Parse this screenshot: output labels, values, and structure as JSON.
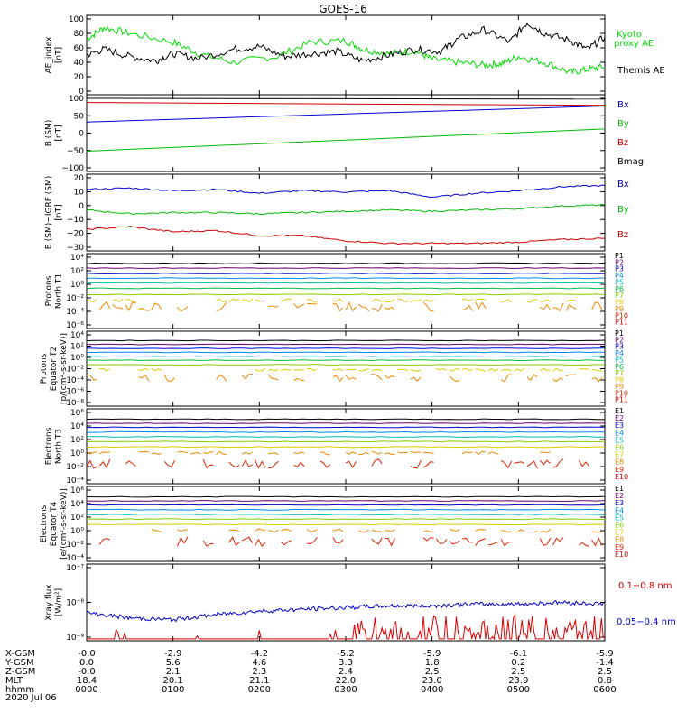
{
  "title": "GOES-16",
  "date_label": "2020 Jul 06",
  "ephemeris": {
    "row_labels": [
      "X-GSM",
      "Y-GSM",
      "Z-GSM",
      "MLT",
      "hhmm"
    ],
    "columns": [
      [
        "-0.0",
        "0.0",
        "-0.0",
        "18.4",
        "0000"
      ],
      [
        "-2.9",
        "5.6",
        "2.1",
        "20.1",
        "0100"
      ],
      [
        "-4.2",
        "4.6",
        "2.3",
        "21.1",
        "0200"
      ],
      [
        "-5.2",
        "3.3",
        "2.4",
        "22.0",
        "0300"
      ],
      [
        "-5.9",
        "1.8",
        "2.5",
        "23.0",
        "0400"
      ],
      [
        "-6.1",
        "0.2",
        "2.5",
        "23.9",
        "0500"
      ],
      [
        "-5.9",
        "-1.4",
        "2.5",
        "0.8",
        "0600"
      ]
    ]
  },
  "chart_data": [
    {
      "type": "line",
      "ylabel": [
        "AE_index",
        "[nT]"
      ],
      "yticks": [
        "100",
        "80",
        "60",
        "40",
        "20",
        "0"
      ],
      "ylim": [
        0,
        100
      ],
      "legend": [
        {
          "label": "Kyoto",
          "color": "#00dd00"
        },
        {
          "label": "proxy AE",
          "color": "#00dd00"
        },
        {
          "label": "Themis AE",
          "color": "#000000"
        }
      ],
      "x_hours": [
        0,
        6
      ],
      "series": [
        {
          "name": "Kyoto proxy AE",
          "color": "#00dd00",
          "x": [
            0,
            0.2,
            0.5,
            1.0,
            1.3,
            1.7,
            2.2,
            2.6,
            3.0,
            3.2,
            3.5,
            3.8,
            4.0,
            4.3,
            4.6,
            4.8,
            5.0,
            5.3,
            5.6,
            5.8,
            6.0
          ],
          "y": [
            72,
            88,
            80,
            68,
            52,
            40,
            48,
            68,
            70,
            58,
            52,
            56,
            44,
            40,
            36,
            38,
            48,
            40,
            26,
            30,
            34
          ]
        },
        {
          "name": "Themis AE",
          "color": "#000000",
          "x": [
            0,
            0.2,
            0.5,
            0.8,
            1.0,
            1.3,
            1.7,
            2.0,
            2.3,
            2.6,
            2.9,
            3.2,
            3.5,
            3.8,
            4.1,
            4.3,
            4.6,
            4.9,
            5.1,
            5.3,
            5.6,
            5.8,
            6.0
          ],
          "y": [
            50,
            58,
            48,
            42,
            52,
            45,
            58,
            62,
            48,
            52,
            55,
            42,
            50,
            58,
            55,
            72,
            85,
            68,
            95,
            80,
            70,
            58,
            75
          ]
        }
      ]
    },
    {
      "type": "line",
      "ylabel": [
        "B (SM)",
        "[nT]"
      ],
      "yticks": [
        "100",
        "50",
        "0",
        "−50",
        "−100"
      ],
      "ylim": [
        -100,
        100
      ],
      "legend": [
        {
          "label": "Bx",
          "color": "#0000cc"
        },
        {
          "label": "By",
          "color": "#00bb00"
        },
        {
          "label": "Bz",
          "color": "#cc0000"
        },
        {
          "label": "Bmag",
          "color": "#000000"
        }
      ],
      "x_hours": [
        0,
        6
      ],
      "series": [
        {
          "name": "Bmag",
          "color": "#000000",
          "x": [
            0,
            6
          ],
          "y": [
            100,
            98
          ]
        },
        {
          "name": "Bz",
          "color": "#cc0000",
          "x": [
            0,
            6
          ],
          "y": [
            88,
            80
          ]
        },
        {
          "name": "Bx",
          "color": "#0000cc",
          "x": [
            0,
            6
          ],
          "y": [
            32,
            78
          ]
        },
        {
          "name": "By",
          "color": "#00bb00",
          "x": [
            0,
            6
          ],
          "y": [
            -52,
            12
          ]
        }
      ]
    },
    {
      "type": "line",
      "ylabel": [
        "B (SM)−IGRF (SM)",
        "[nT]"
      ],
      "yticks": [
        "20",
        "10",
        "0",
        "−10",
        "−20",
        "−30"
      ],
      "ylim": [
        -32,
        22
      ],
      "legend": [
        {
          "label": "Bx",
          "color": "#0000cc"
        },
        {
          "label": "By",
          "color": "#00bb00"
        },
        {
          "label": "Bz",
          "color": "#cc0000"
        }
      ],
      "x_hours": [
        0,
        6
      ],
      "series": [
        {
          "name": "Bx",
          "color": "#0000cc",
          "x": [
            0,
            0.5,
            1.0,
            1.5,
            2.0,
            2.5,
            3.0,
            3.5,
            4.0,
            4.5,
            5.0,
            5.5,
            6.0
          ],
          "y": [
            13,
            14,
            12,
            13,
            10,
            12,
            11,
            12,
            7,
            10,
            12,
            15,
            16
          ]
        },
        {
          "name": "By",
          "color": "#00bb00",
          "x": [
            0,
            0.5,
            1.0,
            1.5,
            2.0,
            2.5,
            3.0,
            3.5,
            4.0,
            4.5,
            5.0,
            5.5,
            6.0
          ],
          "y": [
            -3,
            -6,
            -5,
            -5,
            -6,
            -5,
            -4,
            -3,
            -4,
            -3,
            -2,
            0,
            1
          ]
        },
        {
          "name": "Bz",
          "color": "#cc0000",
          "x": [
            0,
            0.5,
            1.0,
            1.5,
            2.0,
            2.5,
            3.0,
            3.5,
            4.0,
            4.5,
            5.0,
            5.5,
            6.0
          ],
          "y": [
            -18,
            -16,
            -20,
            -19,
            -23,
            -23,
            -27,
            -29,
            -29,
            -29,
            -28,
            -26,
            -25
          ]
        }
      ]
    },
    {
      "type": "line",
      "ylabel": [
        "Protons",
        "North T1"
      ],
      "yticks": [
        "10⁴",
        "10²",
        "10⁰",
        "10⁻²",
        "10⁻⁴",
        "10⁻⁶"
      ],
      "log_scale": true,
      "legend": [
        {
          "label": "P1",
          "color": "#000000"
        },
        {
          "label": "P2",
          "color": "#6a006a"
        },
        {
          "label": "P3",
          "color": "#0000cc"
        },
        {
          "label": "P4",
          "color": "#0088ee"
        },
        {
          "label": "P5",
          "color": "#00bbbb"
        },
        {
          "label": "P6",
          "color": "#00bb44"
        },
        {
          "label": "P7",
          "color": "#88cc00"
        },
        {
          "label": "P8",
          "color": "#ddcc00"
        },
        {
          "label": "P9",
          "color": "#ee8800"
        },
        {
          "label": "P10",
          "color": "#dd2200"
        },
        {
          "label": "P11",
          "color": "#cc0000"
        }
      ],
      "levels_log10": [
        3.1,
        2.4,
        1.6,
        0.9,
        0.2,
        -0.6,
        -1.5,
        -2.4,
        -3.3
      ]
    },
    {
      "type": "line",
      "ylabel": [
        "Protons",
        "Equator T2",
        "[p/(cm²-s-sr-keV)]"
      ],
      "yticks": [
        "10⁴",
        "10²",
        "10⁰",
        "10⁻²",
        "10⁻⁴",
        "10⁻⁶",
        "10⁻⁸"
      ],
      "log_scale": true,
      "legend": [
        {
          "label": "P1",
          "color": "#000000"
        },
        {
          "label": "P2",
          "color": "#6a006a"
        },
        {
          "label": "P3",
          "color": "#0000cc"
        },
        {
          "label": "P4",
          "color": "#0088ee"
        },
        {
          "label": "P5",
          "color": "#00bbbb"
        },
        {
          "label": "P6",
          "color": "#00bb44"
        },
        {
          "label": "P7",
          "color": "#88cc00"
        },
        {
          "label": "P8",
          "color": "#ddcc00"
        },
        {
          "label": "P9",
          "color": "#ee8800"
        },
        {
          "label": "P10",
          "color": "#dd2200"
        },
        {
          "label": "P11",
          "color": "#cc0000"
        }
      ],
      "levels_log10": [
        3.0,
        2.3,
        1.6,
        0.9,
        0.2,
        -0.5,
        -1.3,
        -2.2,
        -3.6
      ]
    },
    {
      "type": "line",
      "ylabel": [
        "Electrons",
        "North T3"
      ],
      "yticks": [
        "10⁶",
        "10⁴",
        "10²",
        "10⁰",
        "10⁻²",
        "10⁻⁴"
      ],
      "log_scale": true,
      "legend": [
        {
          "label": "E1",
          "color": "#000000"
        },
        {
          "label": "E2",
          "color": "#6a006a"
        },
        {
          "label": "E3",
          "color": "#0000cc"
        },
        {
          "label": "E4",
          "color": "#0088ee"
        },
        {
          "label": "E5",
          "color": "#00bbbb"
        },
        {
          "label": "E6",
          "color": "#88cc00"
        },
        {
          "label": "E7",
          "color": "#ddcc00"
        },
        {
          "label": "E8",
          "color": "#ee8800"
        },
        {
          "label": "E9",
          "color": "#dd2200"
        },
        {
          "label": "E10",
          "color": "#cc0000"
        }
      ],
      "levels_log10": [
        5.0,
        4.4,
        3.8,
        3.1,
        2.4,
        1.7,
        0.9,
        0.0,
        -1.6
      ]
    },
    {
      "type": "line",
      "ylabel": [
        "Electrons",
        "Equator T4",
        "[e/(cm²-s-sr-keV)]"
      ],
      "yticks": [
        "10⁶",
        "10⁴",
        "10²",
        "10⁰",
        "10⁻²",
        "10⁻⁴"
      ],
      "log_scale": true,
      "legend": [
        {
          "label": "E1",
          "color": "#000000"
        },
        {
          "label": "E2",
          "color": "#6a006a"
        },
        {
          "label": "E3",
          "color": "#0000cc"
        },
        {
          "label": "E4",
          "color": "#0088ee"
        },
        {
          "label": "E5",
          "color": "#00bbbb"
        },
        {
          "label": "E6",
          "color": "#88cc00"
        },
        {
          "label": "E7",
          "color": "#ddcc00"
        },
        {
          "label": "E8",
          "color": "#ee8800"
        },
        {
          "label": "E9",
          "color": "#dd2200"
        },
        {
          "label": "E10",
          "color": "#cc0000"
        }
      ],
      "levels_log10": [
        5.0,
        4.4,
        3.8,
        3.1,
        2.4,
        1.7,
        0.9,
        0.0,
        -1.6
      ]
    },
    {
      "type": "line",
      "ylabel": [
        "Xray flux",
        "[W/m²]"
      ],
      "yticks": [
        "10⁻⁷",
        "10⁻⁸",
        "10⁻⁹"
      ],
      "log_scale": true,
      "legend": [
        {
          "label": "0.1−0.8 nm",
          "color": "#dd0000"
        },
        {
          "label": "0.05−0.4 nm",
          "color": "#0000cc"
        }
      ],
      "series": [
        {
          "name": "0.05−0.4 nm",
          "color": "#0000cc",
          "x": [
            0,
            0.5,
            1.0,
            1.5,
            2.0,
            2.5,
            3.0,
            3.5,
            4.0,
            4.5,
            5.0,
            5.5,
            6.0
          ],
          "y_log10": [
            -8.3,
            -8.45,
            -8.5,
            -8.35,
            -8.25,
            -8.2,
            -8.15,
            -8.1,
            -8.1,
            -8.05,
            -8.05,
            -8.0,
            -8.05
          ]
        }
      ]
    }
  ]
}
